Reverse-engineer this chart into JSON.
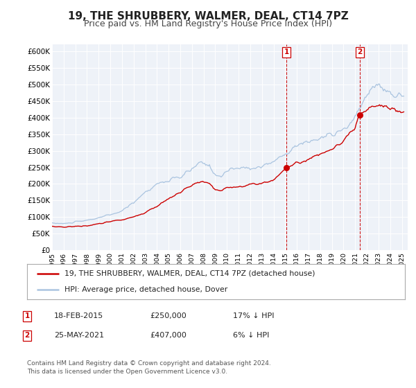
{
  "title": "19, THE SHRUBBERY, WALMER, DEAL, CT14 7PZ",
  "subtitle": "Price paid vs. HM Land Registry's House Price Index (HPI)",
  "ylim": [
    0,
    620000
  ],
  "yticks": [
    0,
    50000,
    100000,
    150000,
    200000,
    250000,
    300000,
    350000,
    400000,
    450000,
    500000,
    550000,
    600000
  ],
  "ytick_labels": [
    "£0",
    "£50K",
    "£100K",
    "£150K",
    "£200K",
    "£250K",
    "£300K",
    "£350K",
    "£400K",
    "£450K",
    "£500K",
    "£550K",
    "£600K"
  ],
  "xlim_start": 1995.0,
  "xlim_end": 2025.5,
  "xticks": [
    1995,
    1996,
    1997,
    1998,
    1999,
    2000,
    2001,
    2002,
    2003,
    2004,
    2005,
    2006,
    2007,
    2008,
    2009,
    2010,
    2011,
    2012,
    2013,
    2014,
    2015,
    2016,
    2017,
    2018,
    2019,
    2020,
    2021,
    2022,
    2023,
    2024,
    2025
  ],
  "hpi_color": "#aac4e0",
  "price_color": "#cc0000",
  "dot_color": "#cc0000",
  "vline_color": "#cc0000",
  "marker1_x": 2015.12,
  "marker1_y": 250000,
  "marker2_x": 2021.4,
  "marker2_y": 407000,
  "annotation1_date": "18-FEB-2015",
  "annotation1_price": "£250,000",
  "annotation1_hpi": "17% ↓ HPI",
  "annotation2_date": "25-MAY-2021",
  "annotation2_price": "£407,000",
  "annotation2_hpi": "6% ↓ HPI",
  "legend_label1": "19, THE SHRUBBERY, WALMER, DEAL, CT14 7PZ (detached house)",
  "legend_label2": "HPI: Average price, detached house, Dover",
  "footer_line1": "Contains HM Land Registry data © Crown copyright and database right 2024.",
  "footer_line2": "This data is licensed under the Open Government Licence v3.0.",
  "fig_bg_color": "#ffffff",
  "plot_bg_color": "#eef2f8",
  "grid_color": "#ffffff",
  "title_fontsize": 11,
  "subtitle_fontsize": 9,
  "tick_fontsize": 7.5,
  "legend_fontsize": 8,
  "ann_fontsize": 8,
  "footer_fontsize": 6.5
}
